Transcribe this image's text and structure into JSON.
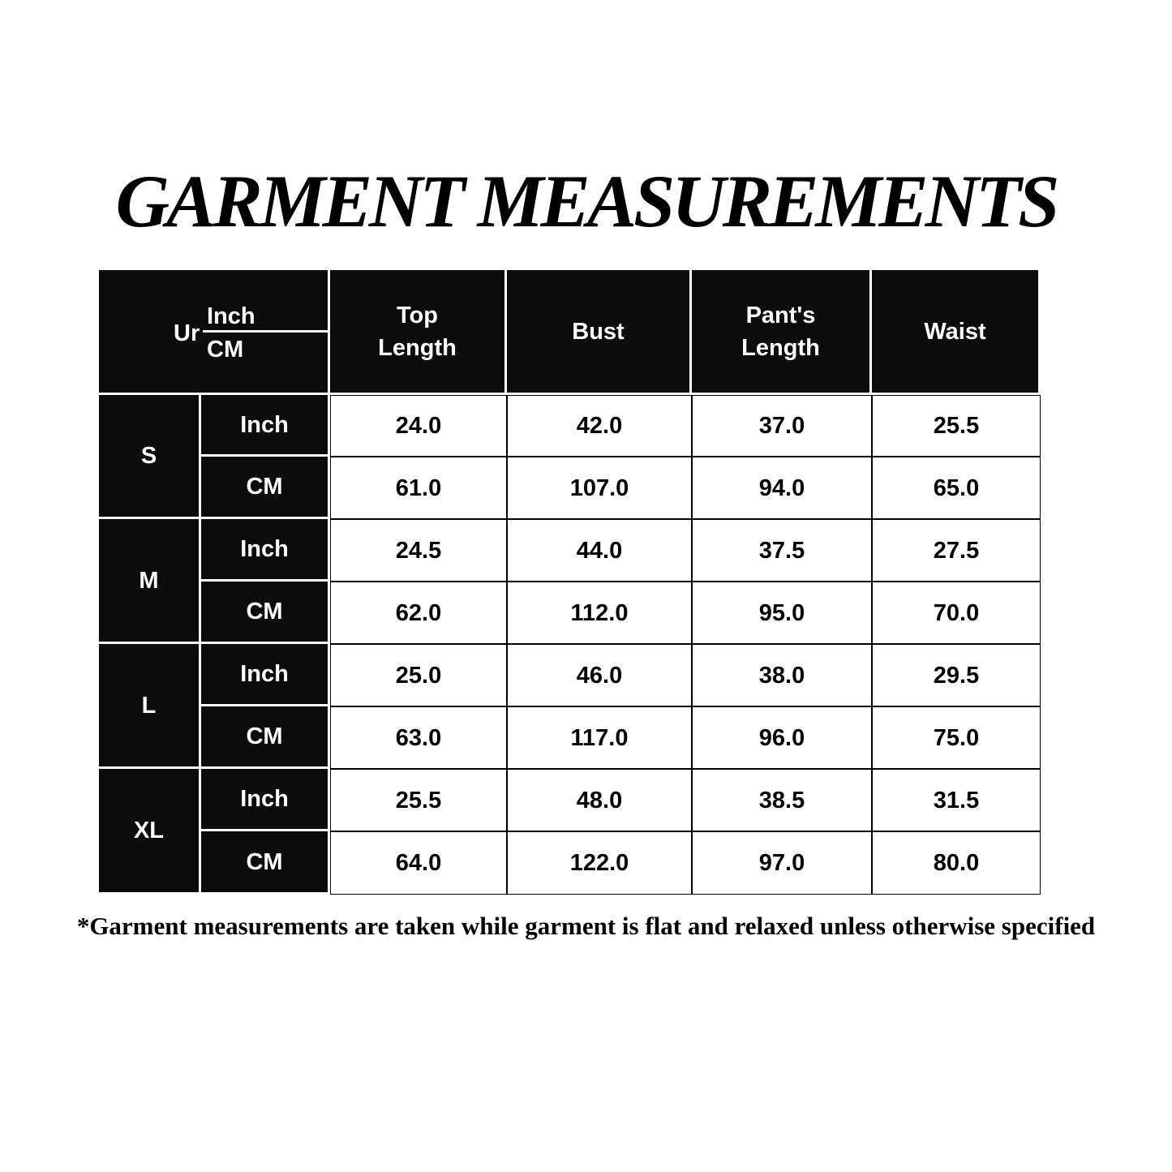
{
  "header": {
    "title": "GARMENT MEASUREMENTS"
  },
  "table": {
    "corner": {
      "unit_label": "Ur",
      "top": "Inch",
      "bottom": "CM"
    },
    "columns": [
      "Top Length",
      "Bust",
      "Pant's Length",
      "Waist"
    ],
    "sizes": [
      {
        "size": "S",
        "rows": [
          {
            "unit": "Inch",
            "values": [
              "24.0",
              "42.0",
              "37.0",
              "25.5"
            ]
          },
          {
            "unit": "CM",
            "values": [
              "61.0",
              "107.0",
              "94.0",
              "65.0"
            ]
          }
        ]
      },
      {
        "size": "M",
        "rows": [
          {
            "unit": "Inch",
            "values": [
              "24.5",
              "44.0",
              "37.5",
              "27.5"
            ]
          },
          {
            "unit": "CM",
            "values": [
              "62.0",
              "112.0",
              "95.0",
              "70.0"
            ]
          }
        ]
      },
      {
        "size": "L",
        "rows": [
          {
            "unit": "Inch",
            "values": [
              "25.0",
              "46.0",
              "38.0",
              "29.5"
            ]
          },
          {
            "unit": "CM",
            "values": [
              "63.0",
              "117.0",
              "96.0",
              "75.0"
            ]
          }
        ]
      },
      {
        "size": "XL",
        "rows": [
          {
            "unit": "Inch",
            "values": [
              "25.5",
              "48.0",
              "38.5",
              "31.5"
            ]
          },
          {
            "unit": "CM",
            "values": [
              "64.0",
              "122.0",
              "97.0",
              "80.0"
            ]
          }
        ]
      }
    ]
  },
  "footnote": "*Garment measurements are taken while garment is flat and relaxed unless otherwise specified"
}
